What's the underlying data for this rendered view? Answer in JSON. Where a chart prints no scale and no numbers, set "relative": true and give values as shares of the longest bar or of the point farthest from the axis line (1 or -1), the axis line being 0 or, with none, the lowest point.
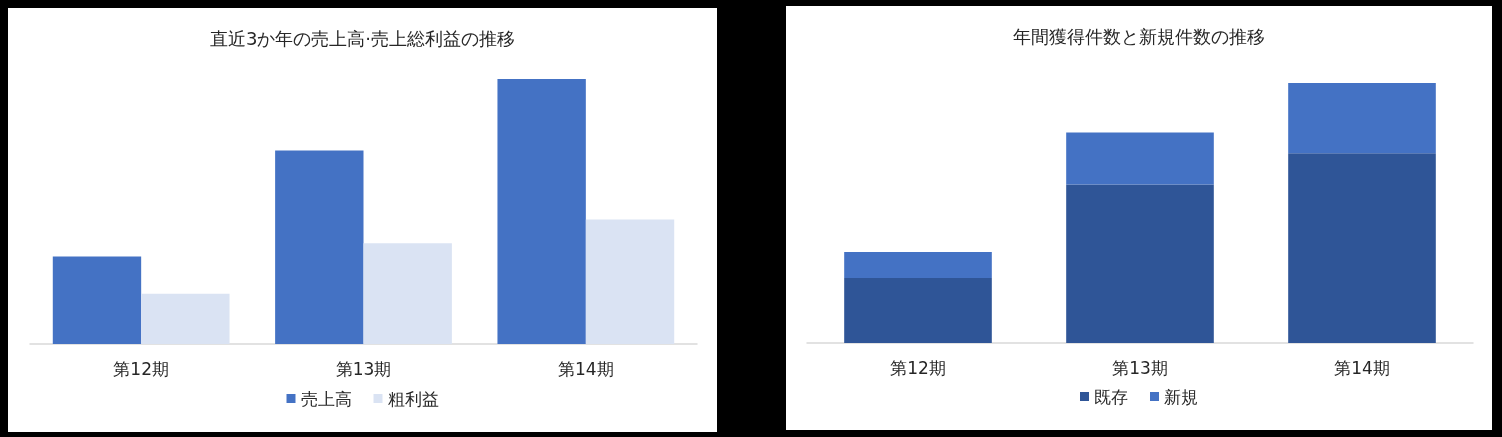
{
  "chart_data": [
    {
      "type": "bar",
      "title": "直近3か年の売上高·売上総利益の推移",
      "categories": [
        "第12期",
        "第13期",
        "第14期"
      ],
      "series": [
        {
          "name": "売上高",
          "color": "#4472c4",
          "values": [
            0.33,
            0.73,
            1
          ]
        },
        {
          "name": "粗利益",
          "color": "#dae3f3",
          "values": [
            0.19,
            0.38,
            0.47
          ]
        }
      ],
      "relative": true,
      "legend": "bottom"
    },
    {
      "type": "bar",
      "title": "年間獲得件数と新規件数の推移",
      "categories": [
        "第12期",
        "第13期",
        "第14期"
      ],
      "stacked": true,
      "series": [
        {
          "name": "既存",
          "color": "#2f5597",
          "values": [
            0.25,
            0.61,
            0.73
          ]
        },
        {
          "name": "新規",
          "color": "#4472c4",
          "values": [
            0.1,
            0.2,
            0.27
          ]
        }
      ],
      "relative": true,
      "legend": "bottom"
    }
  ]
}
